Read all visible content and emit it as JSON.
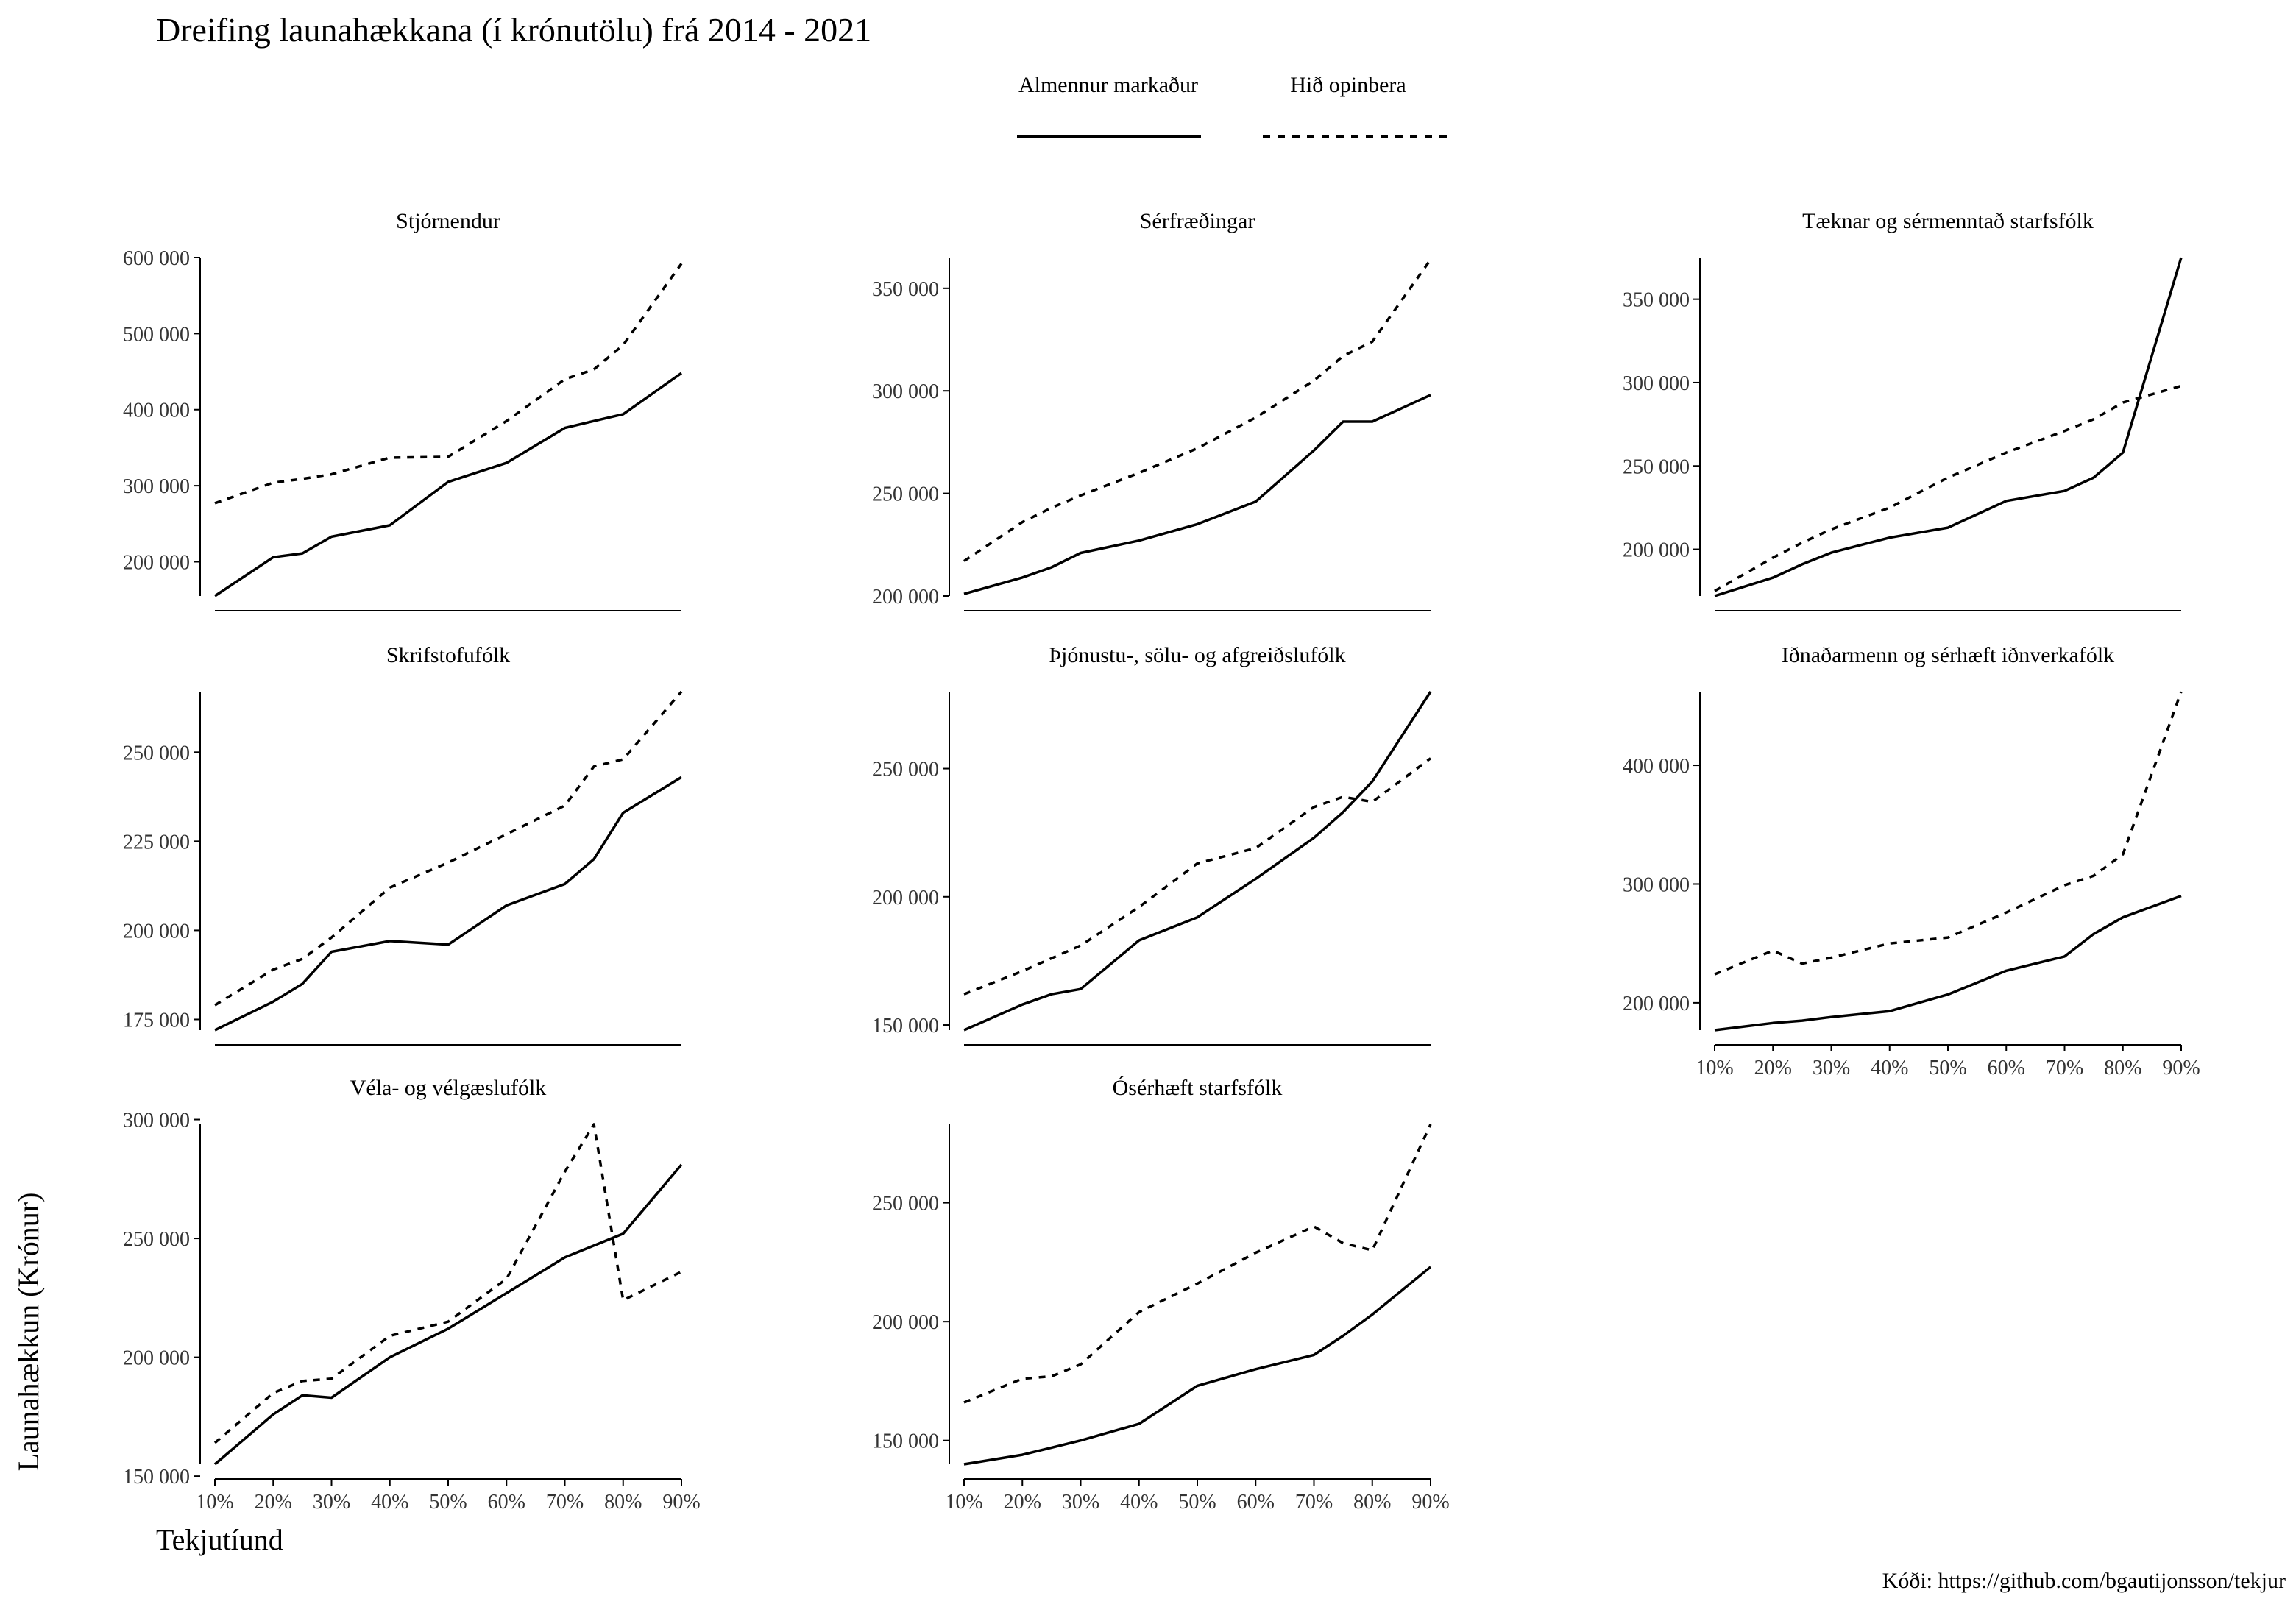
{
  "title": "Dreifing launahækkana (í krónutölu) frá 2014 - 2021",
  "caption": "Kóði: https://github.com/bgautijonsson/tekjur",
  "xlabel": "Tekjutíund",
  "ylabel": "Launahækkun (Krónur)",
  "legend": {
    "placement": "top-center",
    "items": [
      {
        "name": "Almennur markaður",
        "style": "solid"
      },
      {
        "name": "Hið opinbera",
        "style": "dashed"
      }
    ]
  },
  "chart_data": {
    "type": "line",
    "x": [
      10,
      20,
      25,
      30,
      40,
      50,
      60,
      70,
      75,
      80,
      90
    ],
    "x_ticks": [
      "10%",
      "20%",
      "30%",
      "40%",
      "50%",
      "60%",
      "70%",
      "80%",
      "90%"
    ],
    "x_tick_values": [
      10,
      20,
      30,
      40,
      50,
      60,
      70,
      80,
      90
    ],
    "grid": false,
    "facets": [
      {
        "label": "Stjórnendur",
        "ylim": [
          155000,
          600000
        ],
        "y_ticks": [
          200000,
          300000,
          400000,
          500000,
          600000
        ],
        "series": [
          {
            "name": "Almennur markaður",
            "values": [
              155000,
              206000,
              211000,
              233000,
              248000,
              305000,
              330000,
              376000,
              385000,
              394000,
              448000
            ]
          },
          {
            "name": "Hið opinbera",
            "values": [
              277000,
              304000,
              309000,
              315000,
              337000,
              338000,
              385000,
              440000,
              453000,
              485000,
              592000
            ]
          }
        ]
      },
      {
        "label": "Sérfræðingar",
        "ylim": [
          200000,
          365000
        ],
        "y_ticks": [
          200000,
          250000,
          300000,
          350000
        ],
        "series": [
          {
            "name": "Almennur markaður",
            "values": [
              201000,
              209000,
              214000,
              221000,
              227000,
              235000,
              246000,
              271000,
              285000,
              285000,
              298000
            ]
          },
          {
            "name": "Hið opinbera",
            "values": [
              217000,
              236000,
              243000,
              249000,
              260000,
              272000,
              287000,
              305000,
              317000,
              324000,
              364000
            ]
          }
        ]
      },
      {
        "label": "Tæknar og sérmenntað starfsfólk",
        "ylim": [
          172000,
          375000
        ],
        "y_ticks": [
          200000,
          250000,
          300000,
          350000
        ],
        "series": [
          {
            "name": "Almennur markaður",
            "values": [
              172000,
              183000,
              191000,
              198000,
              207000,
              213000,
              229000,
              235000,
              243000,
              258000,
              375000
            ]
          },
          {
            "name": "Hið opinbera",
            "values": [
              175000,
              195000,
              204000,
              212000,
              225000,
              243000,
              258000,
              271000,
              278000,
              288000,
              298000
            ]
          }
        ]
      },
      {
        "label": "Skrifstofufólk",
        "ylim": [
          172000,
          267000
        ],
        "y_ticks": [
          175000,
          200000,
          225000,
          250000
        ],
        "series": [
          {
            "name": "Almennur markaður",
            "values": [
              172000,
              180000,
              185000,
              194000,
              197000,
              196000,
              207000,
              213000,
              220000,
              233000,
              243000
            ]
          },
          {
            "name": "Hið opinbera",
            "values": [
              179000,
              189000,
              192000,
              198000,
              212000,
              219000,
              227000,
              235000,
              246000,
              248000,
              267000
            ]
          }
        ]
      },
      {
        "label": "Þjónustu-, sölu- og afgreiðslufólk",
        "ylim": [
          148000,
          280000
        ],
        "y_ticks": [
          150000,
          200000,
          250000
        ],
        "series": [
          {
            "name": "Almennur markaður",
            "values": [
              148000,
              158000,
              162000,
              164000,
              183000,
              192000,
              207000,
              223000,
              233000,
              245000,
              280000
            ]
          },
          {
            "name": "Hið opinbera",
            "values": [
              162000,
              171000,
              176000,
              181000,
              196000,
              213000,
              219000,
              235000,
              239000,
              237000,
              254000
            ]
          }
        ]
      },
      {
        "label": "Iðnaðarmenn og sérhæft iðnverkafólk",
        "ylim": [
          177000,
          462000
        ],
        "y_ticks": [
          200000,
          300000,
          400000
        ],
        "series": [
          {
            "name": "Almennur markaður",
            "values": [
              177000,
              183000,
              185000,
              188000,
              193000,
              207000,
              227000,
              239000,
              258000,
              272000,
              290000
            ]
          },
          {
            "name": "Hið opinbera",
            "values": [
              224000,
              244000,
              233000,
              238000,
              250000,
              255000,
              276000,
              299000,
              307000,
              325000,
              462000
            ]
          }
        ]
      },
      {
        "label": "Véla- og vélgæslufólk",
        "ylim": [
          155000,
          298000
        ],
        "y_ticks": [
          150000,
          200000,
          250000,
          300000
        ],
        "series": [
          {
            "name": "Almennur markaður",
            "values": [
              155000,
              176000,
              184000,
              183000,
              200000,
              212000,
              227000,
              242000,
              247000,
              252000,
              281000
            ]
          },
          {
            "name": "Hið opinbera",
            "values": [
              164000,
              185000,
              190000,
              191000,
              209000,
              215000,
              233000,
              278000,
              298000,
              224000,
              236000
            ]
          }
        ]
      },
      {
        "label": "Ósérhæft starfsfólk",
        "ylim": [
          140000,
          283000
        ],
        "y_ticks": [
          150000,
          200000,
          250000
        ],
        "series": [
          {
            "name": "Almennur markaður",
            "values": [
              140000,
              144000,
              147000,
              150000,
              157000,
              173000,
              180000,
              186000,
              194000,
              203000,
              223000
            ]
          },
          {
            "name": "Hið opinbera",
            "values": [
              166000,
              176000,
              177000,
              182000,
              204000,
              216000,
              229000,
              240000,
              233000,
              230000,
              283000
            ]
          }
        ]
      }
    ]
  }
}
